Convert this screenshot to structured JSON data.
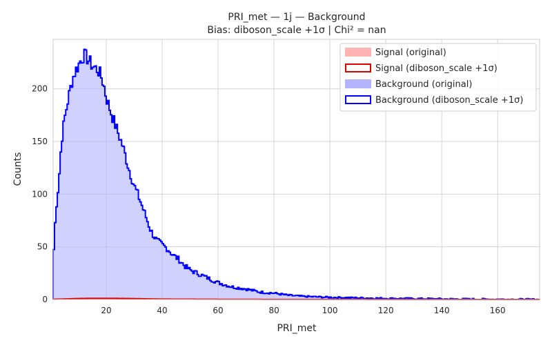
{
  "chart_data": {
    "type": "histogram",
    "title_line1": "PRI_met — 1j — Background",
    "title_line2": "Bias: diboson_scale +1σ | Chi² = nan",
    "xlabel": "PRI_met",
    "ylabel": "Counts",
    "xlim": [
      1,
      175
    ],
    "ylim": [
      0,
      247
    ],
    "x_ticks": [
      20,
      40,
      60,
      80,
      100,
      120,
      140,
      160
    ],
    "y_ticks": [
      0,
      50,
      100,
      150,
      200
    ],
    "x_tick_labels": [
      "20",
      "40",
      "60",
      "80",
      "100",
      "120",
      "140",
      "160"
    ],
    "y_tick_labels": [
      "0",
      "50",
      "100",
      "150",
      "200"
    ],
    "grid": true,
    "legend_position": "top-right",
    "legend": [
      {
        "label": "Signal (original)",
        "style": "filled",
        "color": "#ffb3b3"
      },
      {
        "label": "Signal (diboson_scale +1σ)",
        "style": "outline",
        "color": "#e00000"
      },
      {
        "label": "Background (original)",
        "style": "filled",
        "color": "#b3b3ff"
      },
      {
        "label": "Background (diboson_scale +1σ)",
        "style": "outline",
        "color": "#0000ff"
      }
    ],
    "series": [
      {
        "name": "Background (original)",
        "style": "filled",
        "color": "#b3b3ff",
        "x": [
          1,
          2,
          3,
          4,
          5,
          6,
          7,
          8,
          9,
          10,
          11,
          12,
          13,
          14,
          15,
          16,
          17,
          18,
          19,
          20,
          22,
          24,
          26,
          28,
          30,
          32,
          34,
          36,
          38,
          40,
          42,
          44,
          46,
          48,
          50,
          55,
          60,
          65,
          70,
          75,
          80,
          85,
          90,
          100,
          110,
          120,
          130,
          140,
          150,
          160,
          175
        ],
        "values": [
          35,
          85,
          110,
          150,
          170,
          185,
          198,
          210,
          217,
          222,
          228,
          232,
          230,
          226,
          222,
          220,
          218,
          213,
          205,
          192,
          175,
          160,
          145,
          125,
          108,
          95,
          80,
          65,
          56,
          52,
          48,
          42,
          38,
          32,
          28,
          22,
          16,
          12,
          10,
          7,
          6,
          4,
          3,
          2,
          1.5,
          1,
          0.8,
          0.5,
          0.3,
          0.2,
          0
        ]
      },
      {
        "name": "Background (diboson_scale +1σ)",
        "style": "outline",
        "color": "#0000ff",
        "x": [
          1,
          2,
          3,
          4,
          5,
          6,
          7,
          8,
          9,
          10,
          11,
          12,
          13,
          14,
          15,
          16,
          17,
          18,
          19,
          20,
          22,
          24,
          26,
          28,
          30,
          32,
          34,
          36,
          38,
          40,
          42,
          44,
          46,
          48,
          50,
          55,
          60,
          65,
          70,
          75,
          80,
          85,
          90,
          100,
          110,
          120,
          130,
          140,
          150,
          160,
          175
        ],
        "values": [
          35,
          85,
          110,
          150,
          170,
          185,
          198,
          210,
          217,
          222,
          228,
          232,
          230,
          226,
          222,
          220,
          218,
          213,
          205,
          192,
          175,
          160,
          145,
          125,
          108,
          95,
          80,
          65,
          56,
          52,
          48,
          42,
          38,
          32,
          28,
          22,
          16,
          12,
          10,
          7,
          6,
          4,
          3,
          2,
          1.5,
          1,
          0.8,
          0.5,
          0.3,
          0.2,
          0
        ]
      },
      {
        "name": "Signal (original)",
        "style": "filled",
        "color": "#ffb3b3",
        "x": [
          1,
          5,
          10,
          15,
          20,
          25,
          30,
          35,
          40,
          50,
          60,
          80,
          100,
          175
        ],
        "values": [
          0.2,
          0.5,
          0.9,
          1.1,
          1.1,
          1.0,
          0.8,
          0.6,
          0.4,
          0.3,
          0.2,
          0.1,
          0.05,
          0
        ]
      },
      {
        "name": "Signal (diboson_scale +1σ)",
        "style": "outline",
        "color": "#e00000",
        "x": [
          1,
          5,
          10,
          15,
          20,
          25,
          30,
          35,
          40,
          50,
          60,
          80,
          100,
          175
        ],
        "values": [
          0.2,
          0.5,
          0.9,
          1.1,
          1.1,
          1.0,
          0.8,
          0.6,
          0.4,
          0.3,
          0.2,
          0.1,
          0.05,
          0
        ]
      }
    ]
  }
}
